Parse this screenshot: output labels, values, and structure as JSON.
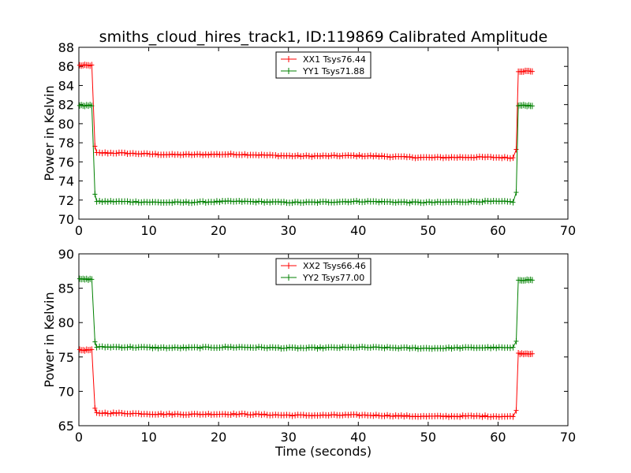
{
  "title": "smiths_cloud_hires_track1, ID:119869 Calibrated Amplitude",
  "chart_data": [
    {
      "type": "line",
      "xlabel": "",
      "ylabel": "Power in Kelvin",
      "xlim": [
        0,
        70
      ],
      "ylim": [
        70,
        88
      ],
      "xticks": [
        "0",
        "10",
        "20",
        "30",
        "40",
        "50",
        "60",
        "70"
      ],
      "yticks": [
        "70",
        "72",
        "74",
        "76",
        "78",
        "80",
        "82",
        "84",
        "86",
        "88"
      ],
      "legend_position": "top-center",
      "series": [
        {
          "name": "XX1 Tsys76.44",
          "color": "#ff0000",
          "high": 86.1,
          "low_start": 76.9,
          "low_end": 76.4,
          "high_end": 85.5
        },
        {
          "name": "YY1 Tsys71.88",
          "color": "#008000",
          "high": 81.9,
          "low_start": 71.8,
          "low_end": 71.8,
          "high_end": 81.9
        }
      ]
    },
    {
      "type": "line",
      "xlabel": "Time (seconds)",
      "ylabel": "Power in Kelvin",
      "xlim": [
        0,
        70
      ],
      "ylim": [
        65,
        90
      ],
      "xticks": [
        "0",
        "10",
        "20",
        "30",
        "40",
        "50",
        "60",
        "70"
      ],
      "yticks": [
        "65",
        "70",
        "75",
        "80",
        "85",
        "90"
      ],
      "legend_position": "top-center",
      "series": [
        {
          "name": "XX2 Tsys66.46",
          "color": "#ff0000",
          "high": 76.0,
          "low_start": 66.8,
          "low_end": 66.3,
          "high_end": 75.5
        },
        {
          "name": "YY2 Tsys77.00",
          "color": "#008000",
          "high": 86.3,
          "low_start": 76.4,
          "low_end": 76.3,
          "high_end": 86.2
        }
      ]
    }
  ]
}
